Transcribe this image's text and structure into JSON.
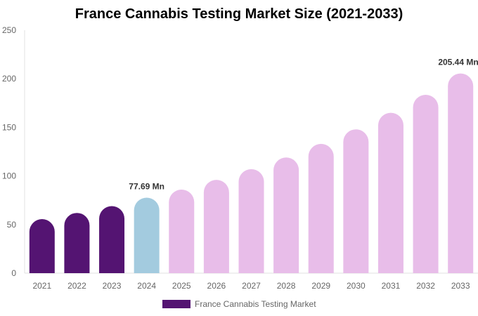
{
  "chart_data": {
    "type": "bar",
    "title": "France Cannabis Testing Market Size (2021-2033)",
    "categories": [
      "2021",
      "2022",
      "2023",
      "2024",
      "2025",
      "2026",
      "2027",
      "2028",
      "2029",
      "2030",
      "2031",
      "2032",
      "2033"
    ],
    "series": [
      {
        "name": "France Cannabis Testing Market",
        "values": [
          55.6,
          62,
          69,
          77.69,
          86,
          96,
          107,
          119,
          133,
          148,
          165,
          183.5,
          205.44
        ]
      }
    ],
    "bar_colors": [
      "#541472",
      "#541472",
      "#541472",
      "#a3cbdf",
      "#e8bde9",
      "#e8bde9",
      "#e8bde9",
      "#e8bde9",
      "#e8bde9",
      "#e8bde9",
      "#e8bde9",
      "#e8bde9",
      "#e8bde9"
    ],
    "data_labels": [
      {
        "index": 3,
        "text": "77.69 Mn"
      },
      {
        "index": 12,
        "text": "205.44 Mn"
      }
    ],
    "ylim": [
      0,
      250
    ],
    "yticks": [
      0,
      50,
      100,
      150,
      200,
      250
    ],
    "xlabel": "",
    "ylabel": "",
    "grid": false,
    "legend": {
      "position": "bottom",
      "label": "France Cannabis Testing Market",
      "color": "#541472"
    }
  }
}
